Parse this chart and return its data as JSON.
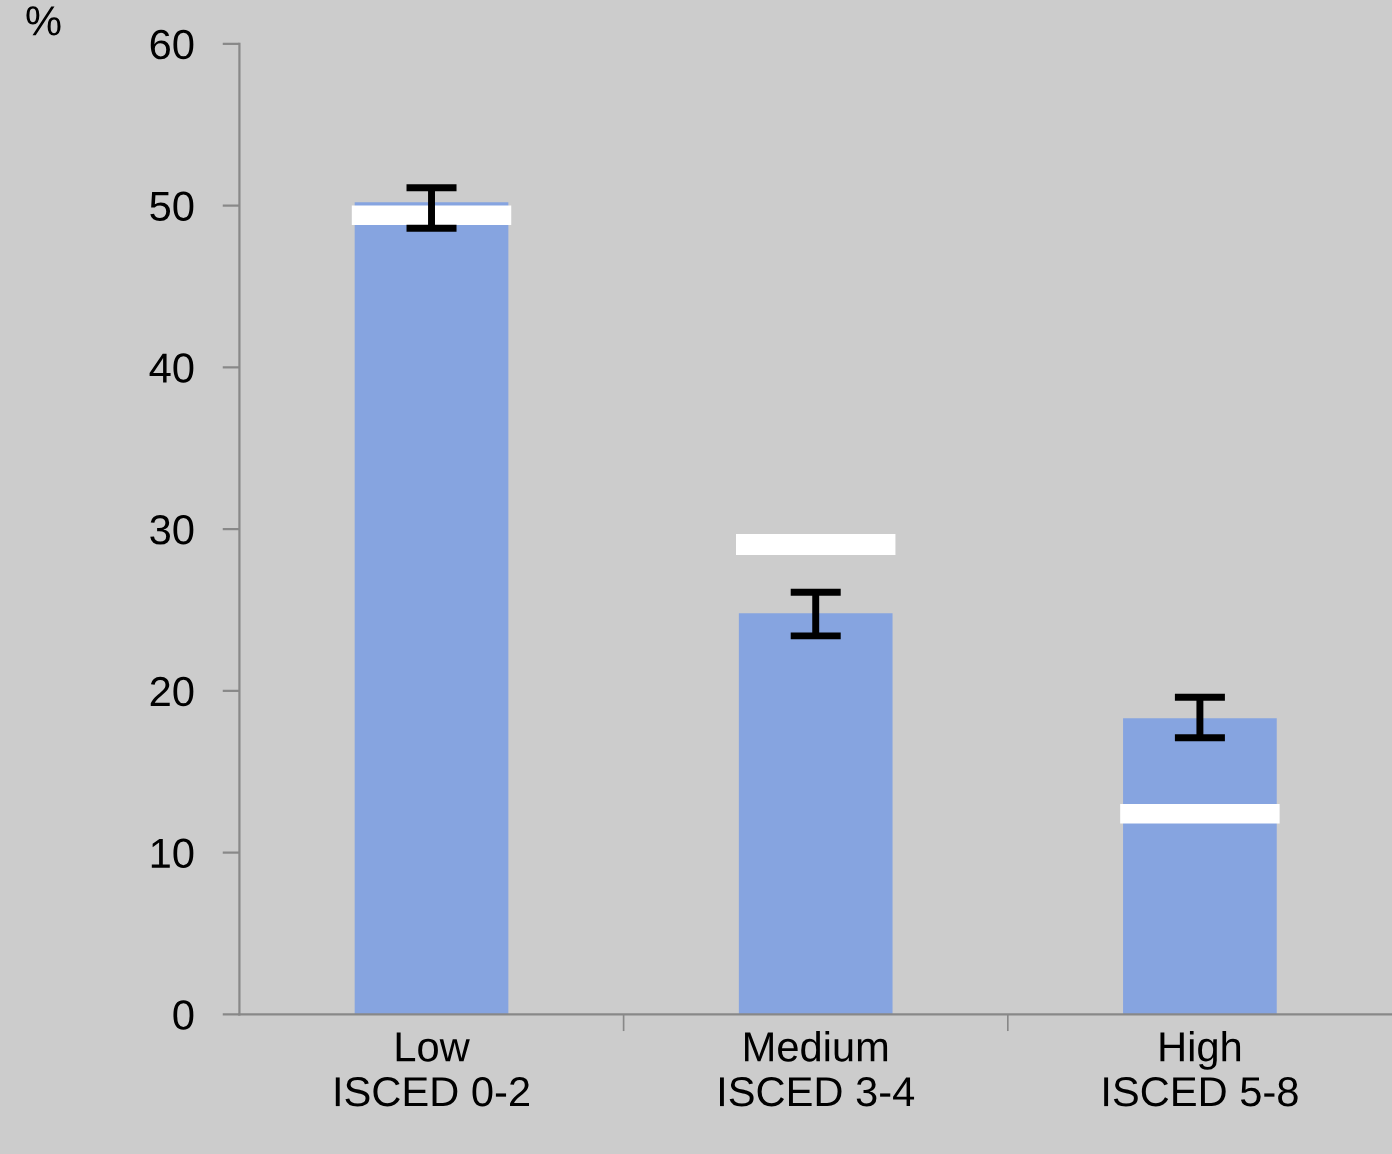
{
  "chart_data": {
    "type": "bar",
    "ylabel": "%",
    "categories": [
      "Low\nISCED 0-2",
      "Medium\nISCED 3-4",
      "High\nISCED 5-8"
    ],
    "series": [
      {
        "color": "#86a4e0",
        "values": [
          50.2,
          24.8,
          18.3
        ],
        "errors": [
          [
            48.6,
            51.1
          ],
          [
            23.4,
            26.1
          ],
          [
            17.1,
            19.6
          ]
        ]
      },
      {
        "type": "bar",
        "color": "#ffffff",
        "base": [
          48.8,
          28.4,
          11.8
        ],
        "values": [
          1.2,
          1.3,
          1.2
        ]
      }
    ],
    "ylim": [
      0,
      60
    ],
    "yticks": [
      0,
      10,
      20,
      30,
      40,
      50,
      60
    ],
    "grid": false,
    "legend": false
  }
}
